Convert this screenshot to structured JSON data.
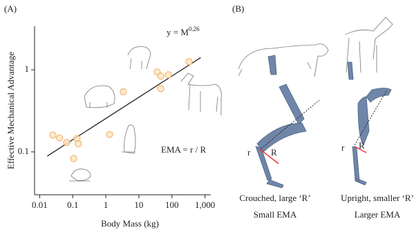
{
  "panel_labels": [
    "(A)",
    "(B)"
  ],
  "chart_data": {
    "type": "scatter",
    "x_label": "Body Mass (kg)",
    "y_label": "Effective Mechanical Advantage",
    "equation": "y = M",
    "equation_exponent": "0.26",
    "annotation": "EMA = r / R",
    "x": [
      0.025,
      0.04,
      0.066,
      0.135,
      0.147,
      0.107,
      1.3,
      3.4,
      36,
      46,
      46,
      78,
      330
    ],
    "values": [
      0.16,
      0.148,
      0.13,
      0.145,
      0.126,
      0.083,
      0.163,
      0.54,
      0.94,
      0.84,
      0.59,
      0.87,
      1.26
    ],
    "color": "#f2b56b",
    "fit_line": {
      "x": [
        0.017,
        740
      ],
      "y": [
        0.089,
        1.41
      ]
    },
    "log_x": true,
    "log_y": true,
    "xlim": [
      0.007,
      1500
    ],
    "ylim": [
      0.03,
      3.4
    ],
    "xticks": [
      0.01,
      0.1,
      1,
      10,
      100,
      {
        "value": 1000,
        "label": "1,000"
      }
    ],
    "yticks": [
      0.1,
      1
    ]
  },
  "diagram": {
    "left": {
      "r": "r",
      "R": "R",
      "caption": [
        "Crouched, large ‘R’",
        "Small EMA"
      ]
    },
    "right": {
      "r": "r",
      "R": "R",
      "caption": [
        "Upright, smaller ‘R’",
        "Larger EMA"
      ]
    }
  }
}
